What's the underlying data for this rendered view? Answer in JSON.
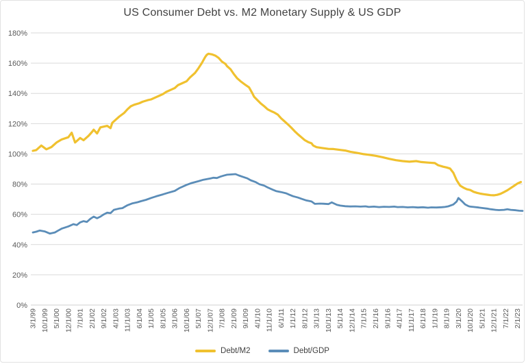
{
  "title": "US Consumer Debt vs. M2 Monetary Supply & US GDP",
  "colors": {
    "debt_m2": "#f0c12f",
    "debt_gdp": "#5b8db8",
    "grid": "#d9d9d9",
    "axis_line": "#d9d9d9",
    "axis_text": "#595959",
    "title_text": "#404040"
  },
  "chart_data": {
    "type": "line",
    "title": "US Consumer Debt vs. M2 Monetary Supply & US GDP",
    "grid": true,
    "legend_position": "bottom",
    "y_axis": {
      "min": 0,
      "max": 180,
      "step": 20,
      "tick_format": "percent",
      "tick_labels": [
        "0%",
        "20%",
        "40%",
        "60%",
        "80%",
        "100%",
        "120%",
        "140%",
        "160%",
        "180%"
      ]
    },
    "x_axis": {
      "months_per_label": 7,
      "tick_labels": [
        "3/1/99",
        "10/1/99",
        "5/1/00",
        "12/1/00",
        "7/1/01",
        "2/1/02",
        "9/1/02",
        "4/1/03",
        "11/1/03",
        "6/1/04",
        "1/1/05",
        "8/1/05",
        "3/1/06",
        "10/1/06",
        "5/1/07",
        "12/1/07",
        "7/1/08",
        "2/1/09",
        "9/1/09",
        "4/1/10",
        "11/1/10",
        "6/1/11",
        "1/1/12",
        "8/1/12",
        "3/1/13",
        "10/1/13",
        "5/1/14",
        "12/1/14",
        "7/1/15",
        "2/1/16",
        "9/1/16",
        "4/1/17",
        "11/1/17",
        "6/1/18",
        "1/1/19",
        "8/1/19",
        "3/1/20",
        "10/1/20",
        "5/1/21",
        "12/1/21",
        "7/1/22",
        "2/1/23"
      ]
    },
    "series": [
      {
        "name": "Debt/M2",
        "color": "#f0c12f",
        "points": [
          [
            0,
            102
          ],
          [
            2,
            102.5
          ],
          [
            3,
            103.5
          ],
          [
            5,
            105.5
          ],
          [
            8,
            103
          ],
          [
            11,
            104.5
          ],
          [
            14,
            107.5
          ],
          [
            17,
            109.5
          ],
          [
            21,
            111
          ],
          [
            23,
            114
          ],
          [
            25,
            107.5
          ],
          [
            28,
            110.5
          ],
          [
            30,
            109
          ],
          [
            33,
            112
          ],
          [
            35,
            114.5
          ],
          [
            36,
            116
          ],
          [
            38,
            113.5
          ],
          [
            40,
            117.5
          ],
          [
            42,
            118
          ],
          [
            44,
            118.5
          ],
          [
            46,
            117
          ],
          [
            47,
            120.5
          ],
          [
            49,
            122.5
          ],
          [
            51,
            124.5
          ],
          [
            54,
            127
          ],
          [
            56,
            129.5
          ],
          [
            58,
            131.5
          ],
          [
            60,
            132.5
          ],
          [
            63,
            133.5
          ],
          [
            65,
            134.5
          ],
          [
            68,
            135.5
          ],
          [
            70,
            136
          ],
          [
            73,
            137.5
          ],
          [
            75,
            138.5
          ],
          [
            77,
            139.5
          ],
          [
            79,
            141
          ],
          [
            82,
            142.5
          ],
          [
            84,
            143.5
          ],
          [
            86,
            145.5
          ],
          [
            88,
            146.5
          ],
          [
            91,
            148
          ],
          [
            93,
            150.5
          ],
          [
            96,
            153.5
          ],
          [
            98,
            156.5
          ],
          [
            100,
            160
          ],
          [
            102,
            164
          ],
          [
            103,
            165.5
          ],
          [
            104,
            166.2
          ],
          [
            106,
            165.8
          ],
          [
            108,
            165
          ],
          [
            110,
            163.5
          ],
          [
            112,
            161
          ],
          [
            114,
            159.5
          ],
          [
            115,
            158
          ],
          [
            117,
            156
          ],
          [
            119,
            152.8
          ],
          [
            121,
            150
          ],
          [
            123,
            148
          ],
          [
            126,
            145.5
          ],
          [
            128,
            144
          ],
          [
            130,
            140
          ],
          [
            131,
            137.8
          ],
          [
            133,
            135.5
          ],
          [
            135,
            133.3
          ],
          [
            137,
            131.5
          ],
          [
            139,
            129.5
          ],
          [
            141,
            128.3
          ],
          [
            143,
            127.3
          ],
          [
            145,
            126
          ],
          [
            147,
            123.5
          ],
          [
            149,
            121.5
          ],
          [
            151,
            119.5
          ],
          [
            153,
            117.4
          ],
          [
            155,
            115
          ],
          [
            157,
            112.9
          ],
          [
            159,
            111
          ],
          [
            161,
            109.1
          ],
          [
            163,
            107.8
          ],
          [
            165,
            107
          ],
          [
            166,
            105.5
          ],
          [
            168,
            104.4
          ],
          [
            171,
            103.9
          ],
          [
            175,
            103.3
          ],
          [
            178,
            103.2
          ],
          [
            182,
            102.6
          ],
          [
            185,
            102.2
          ],
          [
            188,
            101.4
          ],
          [
            192,
            100.6
          ],
          [
            196,
            99.8
          ],
          [
            199,
            99.4
          ],
          [
            203,
            98.7
          ],
          [
            207,
            97.8
          ],
          [
            211,
            96.7
          ],
          [
            215,
            95.8
          ],
          [
            219,
            95.2
          ],
          [
            223,
            94.8
          ],
          [
            227,
            95.2
          ],
          [
            230,
            94.6
          ],
          [
            234,
            94.2
          ],
          [
            238,
            93.9
          ],
          [
            240,
            92.5
          ],
          [
            243,
            91.5
          ],
          [
            245,
            91
          ],
          [
            247,
            90.3
          ],
          [
            249,
            87.5
          ],
          [
            251,
            82.5
          ],
          [
            253,
            79
          ],
          [
            255,
            77.6
          ],
          [
            257,
            76.6
          ],
          [
            259,
            76.1
          ],
          [
            261,
            74.9
          ],
          [
            263,
            74.2
          ],
          [
            265,
            73.7
          ],
          [
            267,
            73.3
          ],
          [
            269,
            73
          ],
          [
            271,
            72.7
          ],
          [
            273,
            72.6
          ],
          [
            275,
            72.9
          ],
          [
            277,
            73.6
          ],
          [
            279,
            74.7
          ],
          [
            281,
            75.9
          ],
          [
            283,
            77.4
          ],
          [
            285,
            78.9
          ],
          [
            287,
            80.4
          ],
          [
            289,
            81.4
          ]
        ]
      },
      {
        "name": "Debt/GDP",
        "color": "#5b8db8",
        "points": [
          [
            0,
            48
          ],
          [
            2,
            48.5
          ],
          [
            4,
            49.3
          ],
          [
            7,
            48.7
          ],
          [
            10,
            47.3
          ],
          [
            13,
            48
          ],
          [
            15,
            49.3
          ],
          [
            17,
            50.5
          ],
          [
            21,
            52
          ],
          [
            24,
            53.5
          ],
          [
            26,
            52.9
          ],
          [
            28,
            54.7
          ],
          [
            30,
            55.5
          ],
          [
            32,
            55
          ],
          [
            34,
            57
          ],
          [
            36,
            58.5
          ],
          [
            38,
            57.4
          ],
          [
            40,
            58.5
          ],
          [
            42,
            60
          ],
          [
            44,
            61.1
          ],
          [
            46,
            60.8
          ],
          [
            48,
            63
          ],
          [
            51,
            63.8
          ],
          [
            53,
            64.1
          ],
          [
            56,
            66
          ],
          [
            59,
            67.3
          ],
          [
            62,
            68
          ],
          [
            64,
            68.7
          ],
          [
            67,
            69.6
          ],
          [
            70,
            70.8
          ],
          [
            73,
            71.9
          ],
          [
            77,
            73.2
          ],
          [
            80,
            74.2
          ],
          [
            84,
            75.5
          ],
          [
            87,
            77.5
          ],
          [
            91,
            79.5
          ],
          [
            94,
            80.7
          ],
          [
            98,
            81.9
          ],
          [
            101,
            82.9
          ],
          [
            105,
            83.7
          ],
          [
            107,
            84.2
          ],
          [
            109,
            84
          ],
          [
            111,
            84.9
          ],
          [
            113,
            85.6
          ],
          [
            115,
            86.2
          ],
          [
            118,
            86.4
          ],
          [
            120,
            86.6
          ],
          [
            122,
            85.7
          ],
          [
            124,
            84.9
          ],
          [
            127,
            83.8
          ],
          [
            129,
            82.5
          ],
          [
            132,
            81.3
          ],
          [
            134,
            80
          ],
          [
            137,
            79
          ],
          [
            139,
            77.8
          ],
          [
            142,
            76.3
          ],
          [
            144,
            75.4
          ],
          [
            147,
            74.7
          ],
          [
            150,
            73.9
          ],
          [
            152,
            72.9
          ],
          [
            154,
            72
          ],
          [
            157,
            71.1
          ],
          [
            159,
            70.3
          ],
          [
            162,
            69.2
          ],
          [
            165,
            68.5
          ],
          [
            167,
            66.9
          ],
          [
            170,
            67.1
          ],
          [
            172,
            67
          ],
          [
            175,
            66.8
          ],
          [
            177,
            67.9
          ],
          [
            180,
            66.3
          ],
          [
            182,
            65.8
          ],
          [
            185,
            65.4
          ],
          [
            188,
            65.2
          ],
          [
            191,
            65.3
          ],
          [
            194,
            65.1
          ],
          [
            197,
            65.3
          ],
          [
            199,
            64.9
          ],
          [
            202,
            65.1
          ],
          [
            205,
            64.8
          ],
          [
            208,
            65
          ],
          [
            211,
            64.9
          ],
          [
            214,
            65.1
          ],
          [
            216,
            64.8
          ],
          [
            219,
            64.9
          ],
          [
            222,
            64.6
          ],
          [
            225,
            64.8
          ],
          [
            228,
            64.5
          ],
          [
            231,
            64.7
          ],
          [
            234,
            64.4
          ],
          [
            236,
            64.6
          ],
          [
            239,
            64.5
          ],
          [
            242,
            64.7
          ],
          [
            244,
            64.9
          ],
          [
            246,
            65.3
          ],
          [
            249,
            66.5
          ],
          [
            251,
            68.5
          ],
          [
            252,
            70.8
          ],
          [
            254,
            68.8
          ],
          [
            256,
            66.5
          ],
          [
            258,
            65.4
          ],
          [
            259,
            65.1
          ],
          [
            261,
            64.9
          ],
          [
            264,
            64.5
          ],
          [
            266,
            64.2
          ],
          [
            269,
            63.8
          ],
          [
            271,
            63.4
          ],
          [
            274,
            63
          ],
          [
            276,
            62.8
          ],
          [
            279,
            63
          ],
          [
            281,
            63.4
          ],
          [
            283,
            63
          ],
          [
            286,
            62.7
          ],
          [
            288,
            62.4
          ],
          [
            290,
            62.3
          ]
        ]
      }
    ],
    "legend": [
      {
        "label": "Debt/M2",
        "color": "#f0c12f"
      },
      {
        "label": "Debt/GDP",
        "color": "#5b8db8"
      }
    ]
  }
}
